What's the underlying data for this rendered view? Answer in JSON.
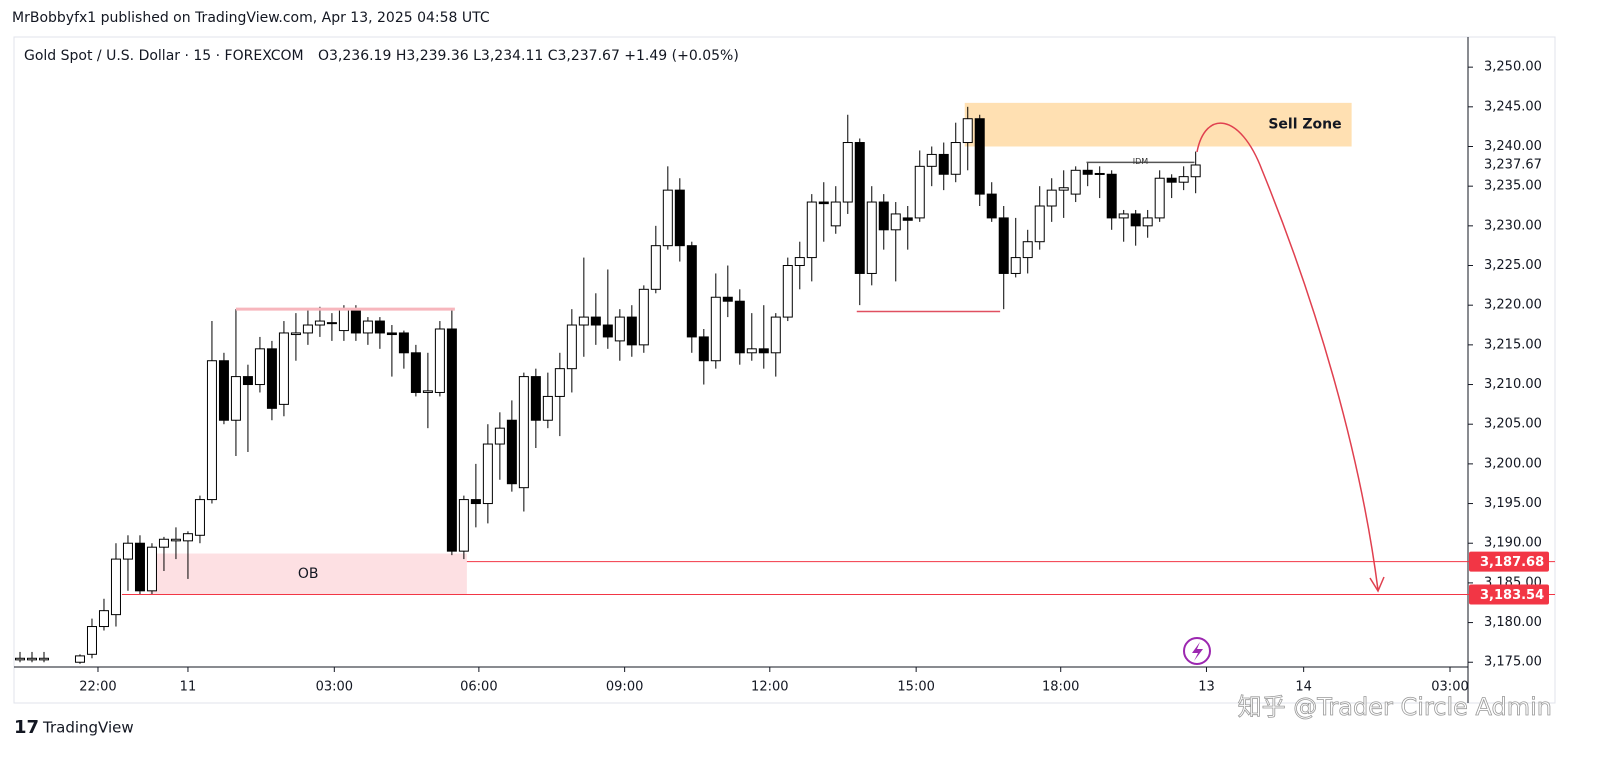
{
  "header": "MrBobbyfx1 published on TradingView.com, Apr 13, 2025 04:58 UTC",
  "branding": "TradingView",
  "watermark": "知乎 @Trader Circle Admin",
  "chart_data": {
    "type": "candlestick",
    "title": "Gold Spot / U.S. Dollar · 15 · FOREXCOM",
    "ohlc_legend": "O3,236.19 H3,239.36 L3,234.11 C3,237.67 +1.49 (+0.05%)",
    "up_color": "#ffffff",
    "down_color": "#000000",
    "wick_color": "#000000",
    "x": [
      -6,
      -5,
      -4,
      -1,
      0,
      1,
      2,
      3,
      4,
      5,
      6,
      7,
      8,
      9,
      10,
      11,
      12,
      13,
      14,
      15,
      16,
      17,
      18,
      19,
      20,
      21,
      22,
      23,
      24,
      25,
      26,
      27,
      28,
      29,
      30,
      31,
      32,
      33,
      34,
      35,
      36,
      37,
      38,
      39,
      40,
      41,
      42,
      43,
      44,
      45,
      46,
      47,
      48,
      49,
      50,
      51,
      52,
      53,
      54,
      55,
      56,
      57,
      58,
      59,
      60,
      61,
      62,
      63,
      64,
      65,
      66,
      67,
      68,
      69,
      70,
      71,
      72,
      73,
      74,
      75,
      76,
      77,
      78,
      79,
      80,
      81,
      82,
      83,
      84,
      85,
      86,
      87,
      88,
      89,
      90,
      91,
      92
    ],
    "open": [
      3175.3,
      3175.3,
      3175.3,
      3175,
      3176,
      3179.5,
      3181,
      3188,
      3190,
      3184,
      3189.5,
      3190.3,
      3190.3,
      3191,
      3195.5,
      3213,
      3205.5,
      3211,
      3210,
      3214.5,
      3207.5,
      3216.3,
      3216.5,
      3217.5,
      3217.8,
      3216.8,
      3219.5,
      3216.5,
      3218,
      3216.5,
      3216.5,
      3214,
      3209,
      3209,
      3217,
      3189,
      3195.5,
      3195,
      3202.5,
      3205.5,
      3197,
      3211,
      3205.5,
      3208.5,
      3212,
      3217.5,
      3218.5,
      3217.5,
      3215.5,
      3218.5,
      3215,
      3222,
      3227.5,
      3234.5,
      3227.5,
      3216,
      3213,
      3221,
      3220.5,
      3214,
      3214.5,
      3214,
      3218.5,
      3225,
      3226,
      3233,
      3230,
      3233,
      3240.5,
      3224,
      3233,
      3229.5,
      3231,
      3231,
      3237.5,
      3239,
      3236.5,
      3240.5,
      3243.5,
      3234,
      3231,
      3224,
      3226,
      3228,
      3232.5,
      3234.5,
      3234,
      3237,
      3236.5,
      3236.5,
      3231,
      3231.5,
      3230,
      3231,
      3236,
      3235.5,
      3236.19
    ],
    "high": [
      3176.3,
      3176.3,
      3176.3,
      3176,
      3180.5,
      3183,
      3190,
      3191,
      3191,
      3190,
      3190.8,
      3192,
      3191.5,
      3196,
      3218,
      3214,
      3219.5,
      3212.5,
      3216,
      3215.5,
      3218,
      3219,
      3219.5,
      3219.8,
      3219,
      3220,
      3220,
      3218.5,
      3218.5,
      3217.5,
      3216.8,
      3215,
      3214,
      3218,
      3219.5,
      3196,
      3200,
      3205,
      3206.5,
      3208,
      3211.5,
      3212,
      3211.5,
      3214,
      3219.5,
      3226,
      3221.5,
      3224.5,
      3219.5,
      3220,
      3222.5,
      3230,
      3237.5,
      3236,
      3228,
      3217,
      3224,
      3225,
      3222,
      3219,
      3220,
      3219,
      3226,
      3228,
      3234,
      3235.5,
      3235,
      3244,
      3241,
      3235,
      3234,
      3233,
      3232.5,
      3239.5,
      3240,
      3240.5,
      3243,
      3245,
      3244,
      3235.5,
      3232.5,
      3231,
      3229.5,
      3235,
      3236,
      3237,
      3237.5,
      3238,
      3237.5,
      3237,
      3232,
      3232,
      3232,
      3237,
      3236.5,
      3237.5,
      3239.36
    ],
    "low": [
      3175,
      3175,
      3175,
      3174.8,
      3175.5,
      3179,
      3179.5,
      3184,
      3183.5,
      3183.5,
      3186.5,
      3188,
      3185.5,
      3190,
      3195,
      3205,
      3201,
      3201.5,
      3209,
      3205.5,
      3206,
      3213,
      3215,
      3216,
      3215.5,
      3215.5,
      3215.5,
      3215,
      3214.5,
      3211,
      3212,
      3208.5,
      3204.5,
      3208.5,
      3188.5,
      3188,
      3192,
      3192.5,
      3198,
      3196.5,
      3194,
      3202,
      3204.5,
      3203.5,
      3209,
      3213.5,
      3215,
      3214.5,
      3213,
      3213.5,
      3214,
      3221.5,
      3227,
      3225.5,
      3214,
      3210,
      3212,
      3218.5,
      3212.5,
      3213,
      3212,
      3211,
      3218,
      3222,
      3223,
      3228,
      3229,
      3231.5,
      3220,
      3222.5,
      3227,
      3223,
      3227,
      3230.5,
      3235,
      3234.5,
      3235.5,
      3237,
      3232.5,
      3230.5,
      3219.5,
      3223.5,
      3224,
      3227,
      3230.5,
      3231,
      3233,
      3235,
      3233.5,
      3229.5,
      3228,
      3227.5,
      3228.5,
      3230.5,
      3233.5,
      3234.5,
      3234.11
    ],
    "close": [
      3175.5,
      3175.5,
      3175.5,
      3175.8,
      3179.5,
      3181.5,
      3188,
      3190,
      3184,
      3189.5,
      3190.5,
      3190.5,
      3191.2,
      3195.5,
      3213,
      3205.5,
      3211,
      3210,
      3214.5,
      3207,
      3216.5,
      3216.5,
      3217.5,
      3218,
      3217.7,
      3219.5,
      3216.5,
      3218,
      3216.5,
      3216.3,
      3214,
      3209,
      3209.2,
      3217,
      3189,
      3195.5,
      3195,
      3202.5,
      3204.5,
      3197.5,
      3211,
      3205.5,
      3208.5,
      3212,
      3217.5,
      3218.5,
      3217.5,
      3216,
      3218.5,
      3215,
      3222,
      3227.5,
      3234.5,
      3227.5,
      3216,
      3213,
      3221,
      3220.5,
      3214,
      3214.5,
      3214,
      3218.5,
      3225,
      3226,
      3233,
      3232.8,
      3233,
      3240.5,
      3224,
      3233,
      3229.5,
      3231.5,
      3230.7,
      3237.5,
      3239,
      3236.5,
      3240.5,
      3243.5,
      3234,
      3231,
      3224,
      3226,
      3228,
      3232.5,
      3234.5,
      3234.8,
      3237,
      3236.5,
      3236.6,
      3231,
      3231.5,
      3230,
      3231,
      3236,
      3235.5,
      3236.2,
      3237.67
    ],
    "xlim": [
      -6.5,
      114.7
    ],
    "xticks": [
      {
        "value": 0.5,
        "label": "22:00"
      },
      {
        "value": 8,
        "label": "11"
      },
      {
        "value": 20.2,
        "label": "03:00"
      },
      {
        "value": 32.25,
        "label": "06:00"
      },
      {
        "value": 44.4,
        "label": "09:00"
      },
      {
        "value": 56.5,
        "label": "12:00"
      },
      {
        "value": 68.7,
        "label": "15:00"
      },
      {
        "value": 80.75,
        "label": "18:00"
      },
      {
        "value": 92.9,
        "label": "13"
      },
      {
        "value": 101,
        "label": "14"
      },
      {
        "value": 113.2,
        "label": "03:00"
      }
    ],
    "ylim": [
      3174.4,
      3253.8
    ],
    "yticks": [
      {
        "value": 3175,
        "label": "3,175.00"
      },
      {
        "value": 3180,
        "label": "3,180.00"
      },
      {
        "value": 3185,
        "label": "3,185.00"
      },
      {
        "value": 3190,
        "label": "3,190.00"
      },
      {
        "value": 3195,
        "label": "3,195.00"
      },
      {
        "value": 3200,
        "label": "3,200.00"
      },
      {
        "value": 3205,
        "label": "3,205.00"
      },
      {
        "value": 3210,
        "label": "3,210.00"
      },
      {
        "value": 3215,
        "label": "3,215.00"
      },
      {
        "value": 3220,
        "label": "3,220.00"
      },
      {
        "value": 3225,
        "label": "3,225.00"
      },
      {
        "value": 3230,
        "label": "3,230.00"
      },
      {
        "value": 3235,
        "label": "3,235.00"
      },
      {
        "value": 3240,
        "label": "3,240.00"
      },
      {
        "value": 3245,
        "label": "3,245.00"
      },
      {
        "value": 3250,
        "label": "3,250.00"
      }
    ],
    "last_price": {
      "value": 3237.67,
      "label": "3,237.67"
    },
    "levels": [
      {
        "value": 3187.68,
        "label": "3,187.68",
        "color": "#f23645"
      },
      {
        "value": 3183.54,
        "label": "3,183.54",
        "color": "#f23645"
      }
    ],
    "zones": [
      {
        "label": "Sell Zone",
        "from": 3240,
        "to": 3245.5,
        "color": "#ffe0b2"
      },
      {
        "label": "OB",
        "from": 3183.5,
        "to": 3188.7,
        "color": "#fde0e3"
      }
    ],
    "lines": [
      {
        "value": 3219.5,
        "color": "#f7b6bd"
      },
      {
        "value": 3219.2,
        "color": "#e05060"
      },
      {
        "value": 3238,
        "label": "IDM",
        "color": "#555555"
      }
    ]
  }
}
